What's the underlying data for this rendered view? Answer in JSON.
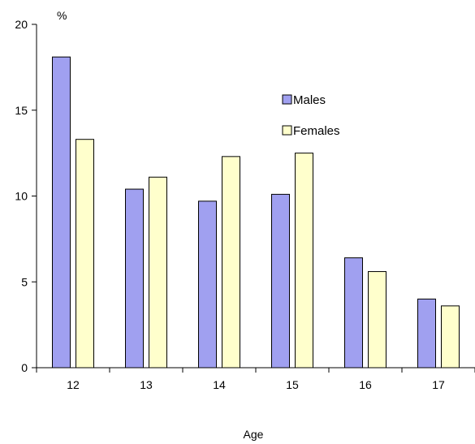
{
  "chart_data": {
    "type": "bar",
    "categories": [
      "12",
      "13",
      "14",
      "15",
      "16",
      "17"
    ],
    "series": [
      {
        "name": "Males",
        "values": [
          18.1,
          10.4,
          9.7,
          10.1,
          6.4,
          4.0
        ],
        "color": "#a0a0f0"
      },
      {
        "name": "Females",
        "values": [
          13.3,
          11.1,
          12.3,
          12.5,
          5.6,
          3.6
        ],
        "color": "#ffffcc"
      }
    ],
    "title": "",
    "xlabel": "Age",
    "ylabel": "%",
    "ylim": [
      0,
      20
    ],
    "yticks": [
      0,
      5,
      10,
      15,
      20
    ],
    "grid": false,
    "legend_position": "top-right"
  }
}
